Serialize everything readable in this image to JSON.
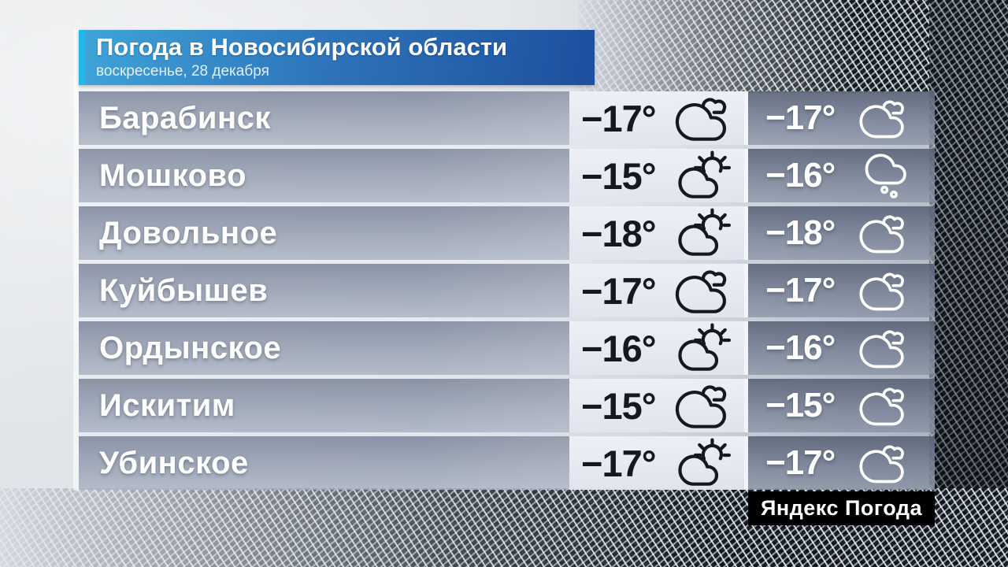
{
  "header": {
    "title": "Погода в Новосибирской области",
    "date": "воскресенье, 28 декабря"
  },
  "table": {
    "rows": [
      {
        "city": "Барабинск",
        "day_temp": "−17°",
        "day_icon": "cloudy",
        "night_temp": "−17°",
        "night_icon": "cloudy"
      },
      {
        "city": "Мошково",
        "day_temp": "−15°",
        "day_icon": "partly-sunny",
        "night_temp": "−16°",
        "night_icon": "snow"
      },
      {
        "city": "Довольное",
        "day_temp": "−18°",
        "day_icon": "partly-sunny",
        "night_temp": "−18°",
        "night_icon": "cloudy"
      },
      {
        "city": "Куйбышев",
        "day_temp": "−17°",
        "day_icon": "cloudy",
        "night_temp": "−17°",
        "night_icon": "cloudy"
      },
      {
        "city": "Ордынское",
        "day_temp": "−16°",
        "day_icon": "partly-sunny",
        "night_temp": "−16°",
        "night_icon": "cloudy"
      },
      {
        "city": "Искитим",
        "day_temp": "−15°",
        "day_icon": "cloudy",
        "night_temp": "−15°",
        "night_icon": "cloudy"
      },
      {
        "city": "Убинское",
        "day_temp": "−17°",
        "day_icon": "partly-sunny",
        "night_temp": "−17°",
        "night_icon": "cloudy"
      }
    ]
  },
  "badge": {
    "label": "Яндекс Погода"
  },
  "colors": {
    "banner_blue_left": "#3fa5d9",
    "banner_blue_right": "#1d4f9e",
    "accent_cyan": "#22b7ea",
    "day_text": "#14181f",
    "night_text": "#ffffff",
    "badge_bg": "#000000"
  }
}
